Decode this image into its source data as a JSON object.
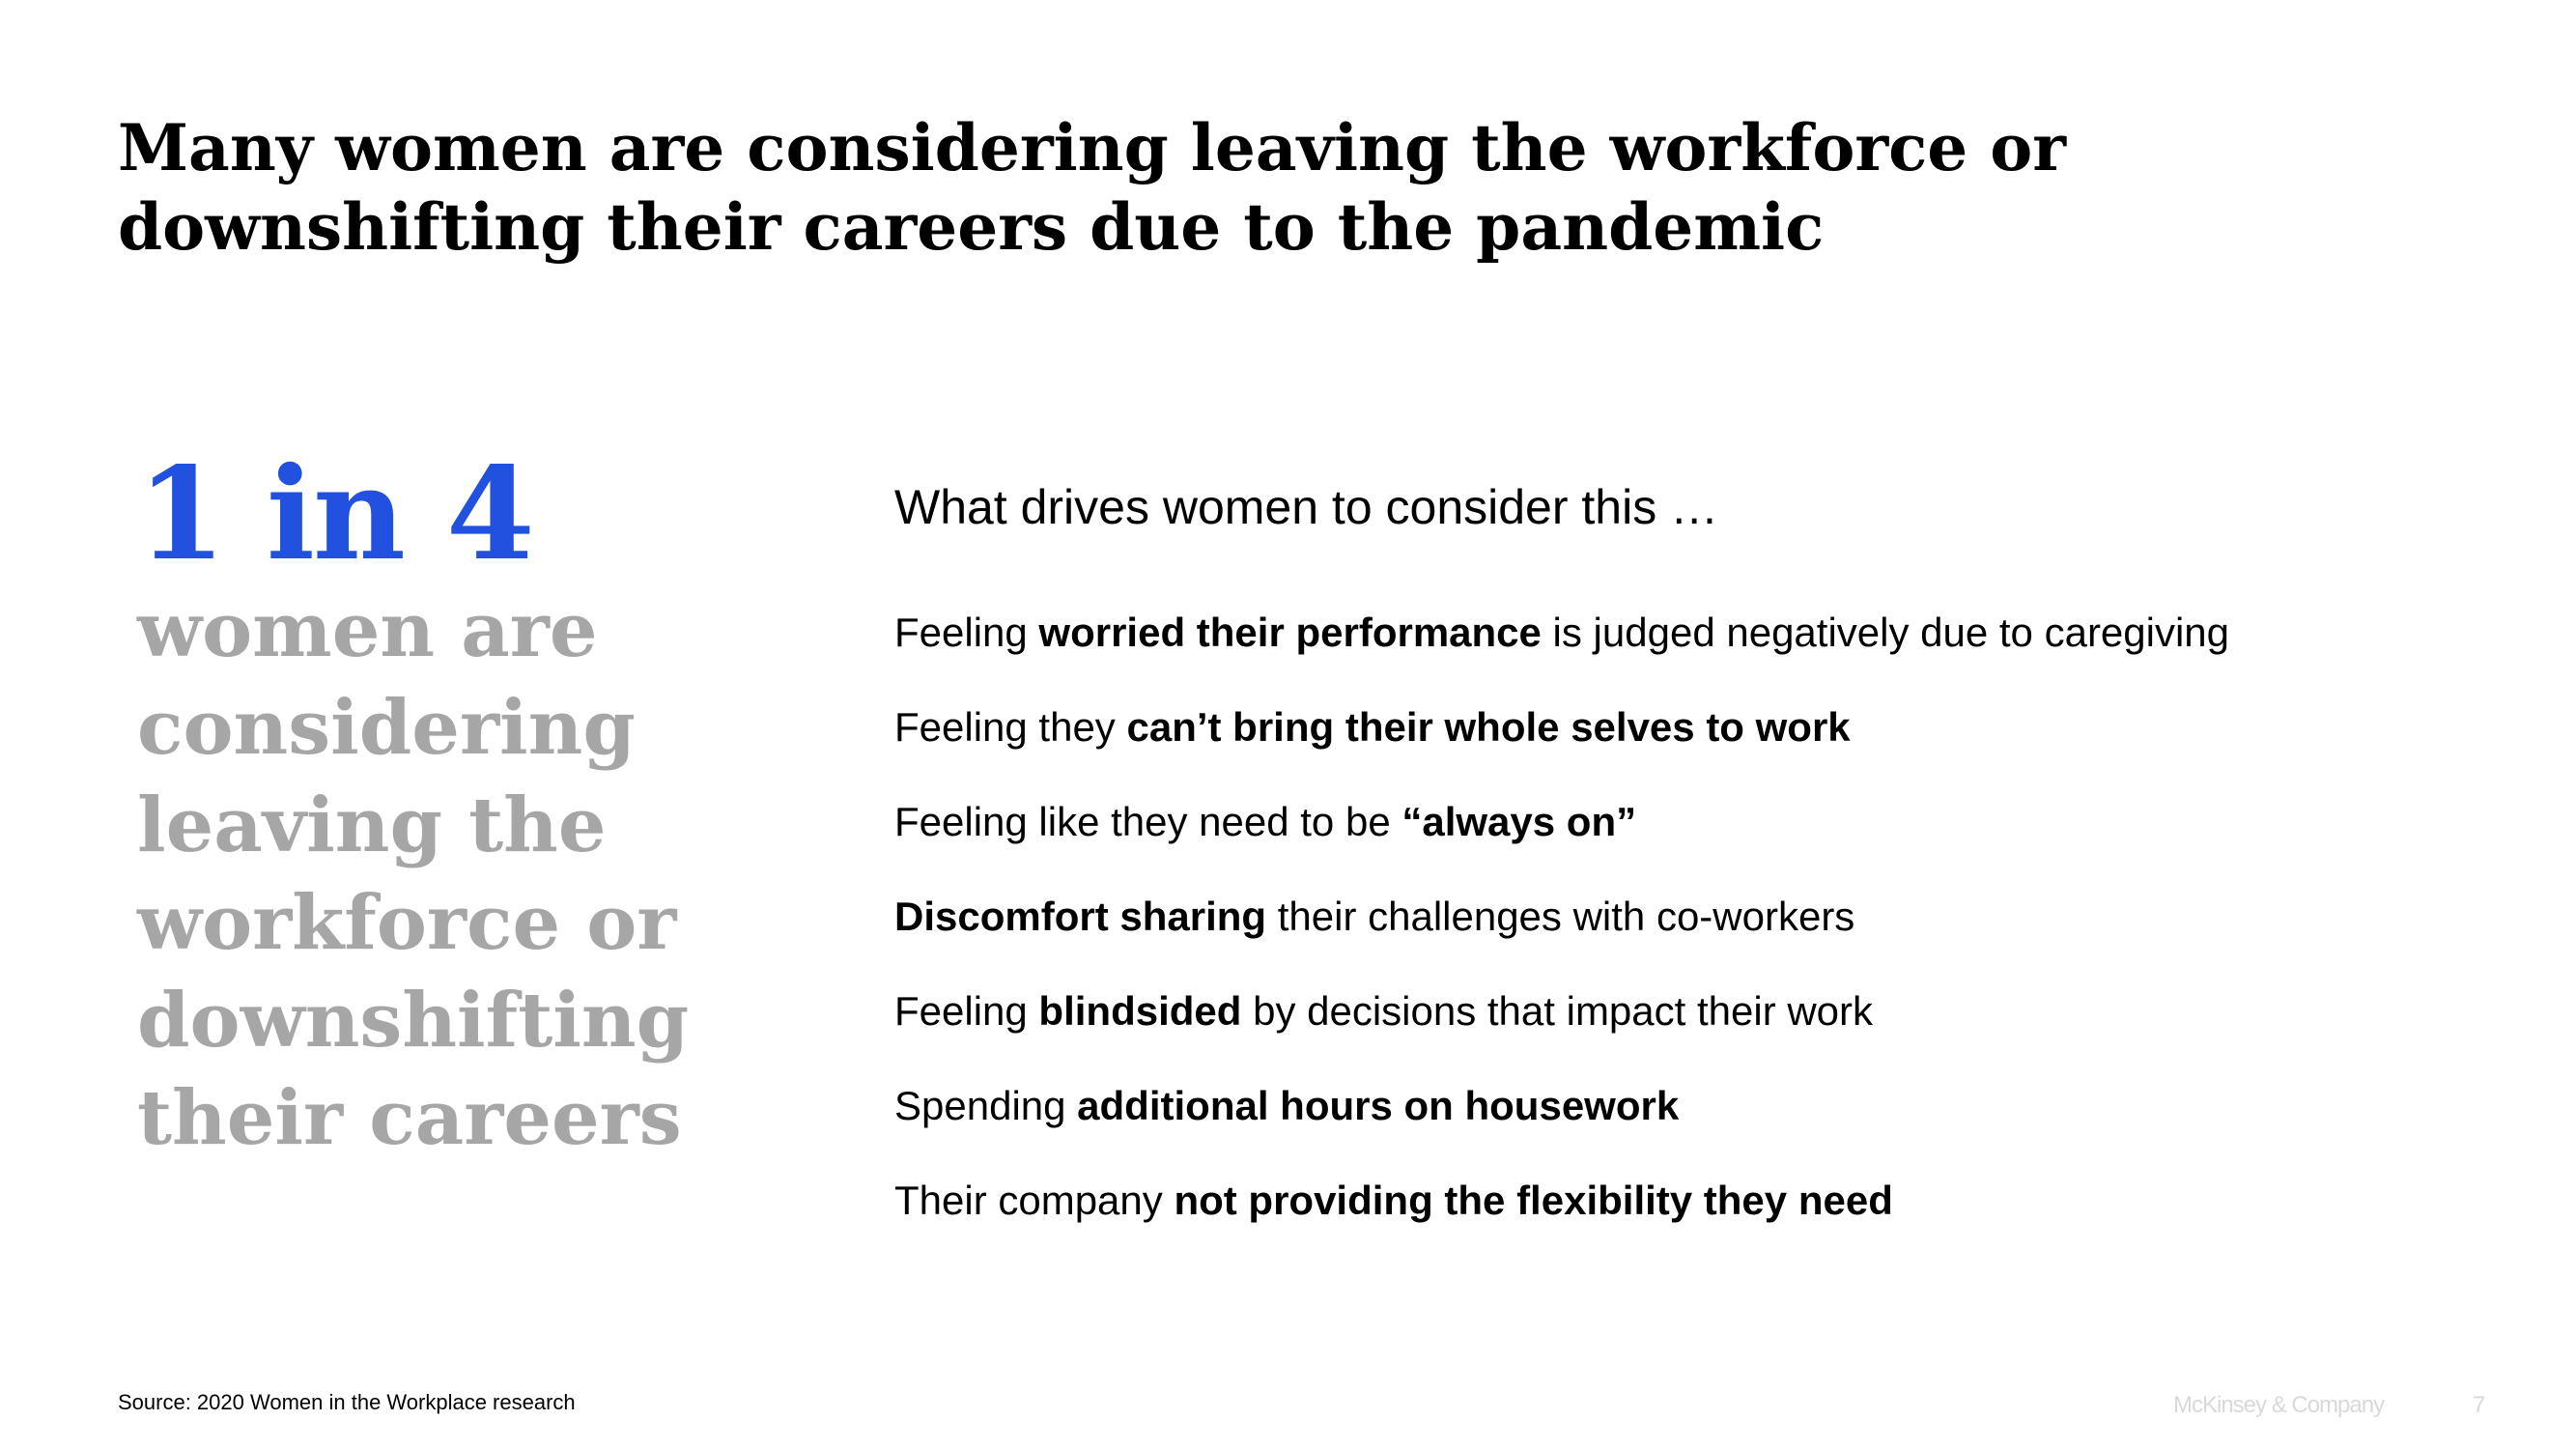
{
  "slide": {
    "title": "Many women are considering leaving the workforce or downshifting their careers due to the pandemic"
  },
  "stat": {
    "number": "1 in 4",
    "text": "women are considering leaving the workforce or downshifting their careers"
  },
  "drivers": {
    "heading": "What drives women to consider this …",
    "items": [
      {
        "before": "Feeling ",
        "bold": "worried their performance",
        "after": " is judged negatively due to caregiving"
      },
      {
        "before": "Feeling they ",
        "bold": "can’t bring their whole selves to work",
        "after": ""
      },
      {
        "before": "Feeling like they need to be ",
        "bold": "“always on”",
        "after": ""
      },
      {
        "before": "",
        "bold": "Discomfort sharing",
        "after": " their challenges with co-workers"
      },
      {
        "before": "Feeling ",
        "bold": "blindsided",
        "after": " by decisions that impact their work"
      },
      {
        "before": "Spending ",
        "bold": "additional hours on housework",
        "after": ""
      },
      {
        "before": "Their company ",
        "bold": "not providing the flexibility they need",
        "after": ""
      }
    ]
  },
  "footer": {
    "source": "Source: 2020 Women in the Workplace research",
    "brand": "McKinsey & Company",
    "page_number": "7"
  },
  "colors": {
    "stat_accent": "#2251E0",
    "stat_text": "#A6A6A6",
    "footer_text": "#D9D9D9"
  }
}
